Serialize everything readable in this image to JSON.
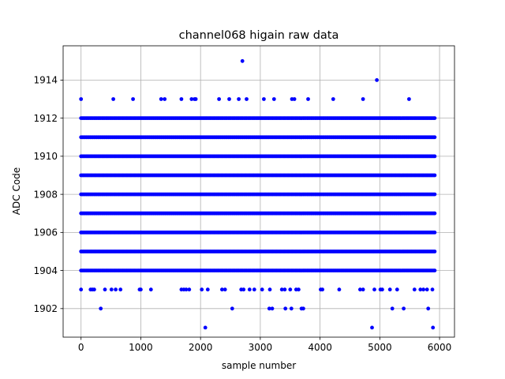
{
  "chart_data": {
    "type": "scatter",
    "title": "channel068 higain raw data",
    "xlabel": "sample number",
    "ylabel": "ADC Code",
    "xlim": [
      -300,
      6250
    ],
    "ylim": [
      1900.5,
      1915.8
    ],
    "xticks": [
      0,
      1000,
      2000,
      3000,
      4000,
      5000,
      6000
    ],
    "yticks": [
      1902,
      1904,
      1906,
      1908,
      1910,
      1912,
      1914
    ],
    "grid": true,
    "marker_color": "#0000ff",
    "n_samples": 5921,
    "dense_levels": [
      1904,
      1905,
      1906,
      1907,
      1908,
      1909,
      1910,
      1911,
      1912
    ],
    "sparse_levels": {
      "1903": [
        0,
        160,
        190,
        220,
        400,
        510,
        580,
        660,
        980,
        1000,
        1170,
        1680,
        1720,
        1760,
        1810,
        2020,
        2120,
        2360,
        2410,
        2680,
        2720,
        2820,
        2900,
        3030,
        3160,
        3360,
        3410,
        3500,
        3600,
        3640,
        4010,
        4040,
        4320,
        4670,
        4720,
        4910,
        5010,
        5040,
        5170,
        5290,
        5580,
        5680,
        5730,
        5790,
        5880
      ],
      "1913": [
        0,
        540,
        870,
        1340,
        1400,
        1680,
        1850,
        1900,
        1920,
        2310,
        2480,
        2640,
        2770,
        3060,
        3230,
        3530,
        3570,
        3800,
        4220,
        4720,
        5490
      ]
    },
    "outliers": [
      {
        "x": 330,
        "y": 1902
      },
      {
        "x": 2080,
        "y": 1901
      },
      {
        "x": 2530,
        "y": 1902
      },
      {
        "x": 2700,
        "y": 1915
      },
      {
        "x": 3150,
        "y": 1902
      },
      {
        "x": 3200,
        "y": 1902
      },
      {
        "x": 3420,
        "y": 1902
      },
      {
        "x": 3520,
        "y": 1902
      },
      {
        "x": 3690,
        "y": 1902
      },
      {
        "x": 3720,
        "y": 1902
      },
      {
        "x": 4870,
        "y": 1901
      },
      {
        "x": 4950,
        "y": 1914
      },
      {
        "x": 5210,
        "y": 1902
      },
      {
        "x": 5400,
        "y": 1902
      },
      {
        "x": 5810,
        "y": 1902
      },
      {
        "x": 5890,
        "y": 1901
      }
    ]
  }
}
